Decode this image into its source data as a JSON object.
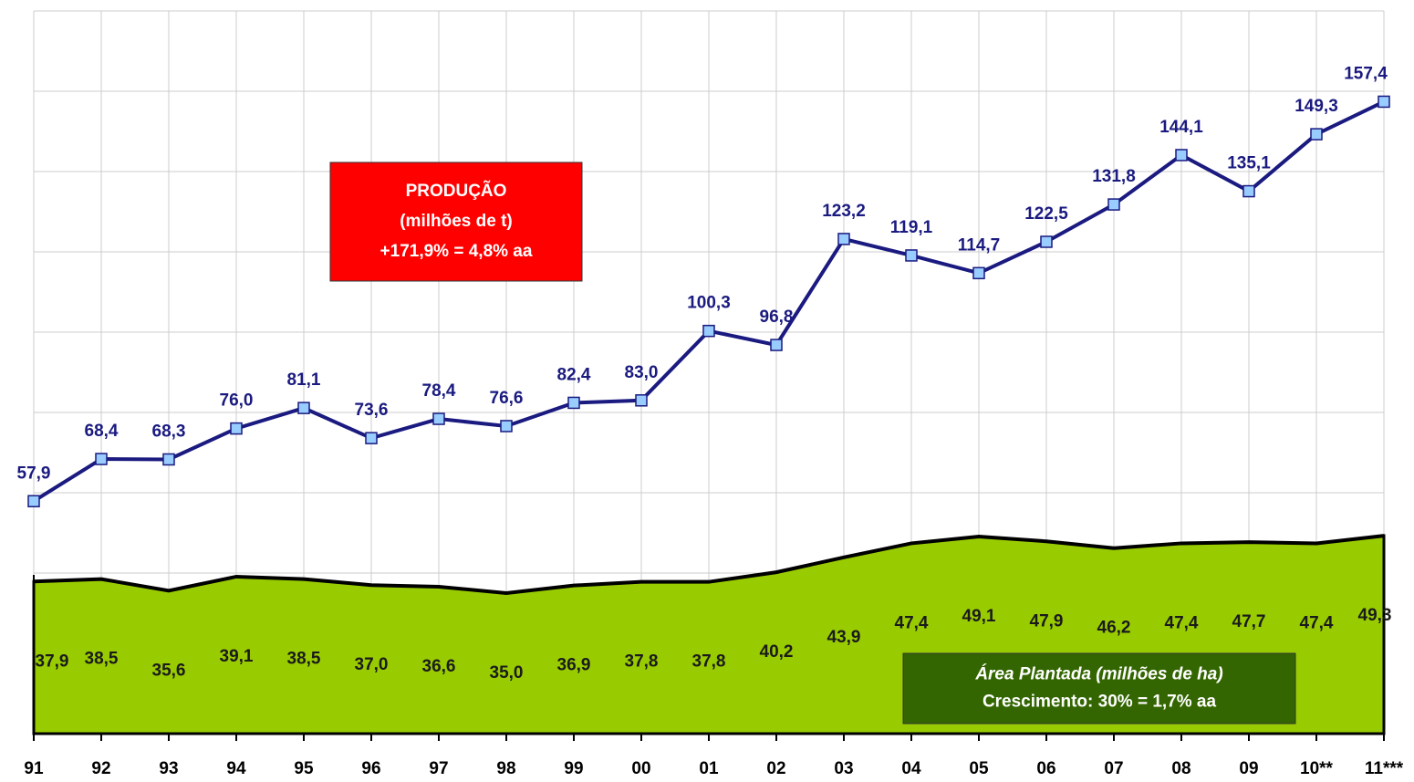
{
  "chart_data": {
    "type": "line",
    "categories": [
      "91",
      "92",
      "93",
      "94",
      "95",
      "96",
      "97",
      "98",
      "99",
      "00",
      "01",
      "02",
      "03",
      "04",
      "05",
      "06",
      "07",
      "08",
      "09",
      "10**",
      "11***"
    ],
    "ylim": [
      0,
      180
    ],
    "yticks": [
      0,
      20,
      40,
      60,
      80,
      100,
      120,
      140,
      160,
      180
    ],
    "grid": true,
    "series": [
      {
        "type": "area",
        "color": "#99cc00",
        "values": [
          37.9,
          38.5,
          35.6,
          39.1,
          38.5,
          37.0,
          36.6,
          35.0,
          36.9,
          37.8,
          37.8,
          40.2,
          43.9,
          47.4,
          49.1,
          47.9,
          46.2,
          47.4,
          47.7,
          47.4,
          49.3
        ],
        "value_labels": [
          "37,9",
          "38,5",
          "35,6",
          "39,1",
          "38,5",
          "37,0",
          "36,6",
          "35,0",
          "36,9",
          "37,8",
          "37,8",
          "40,2",
          "43,9",
          "47,4",
          "49,1",
          "47,9",
          "46,2",
          "47,4",
          "47,7",
          "47,4",
          "49,3"
        ]
      },
      {
        "type": "line",
        "color": "#1a1a80",
        "values": [
          57.9,
          68.4,
          68.3,
          76.0,
          81.1,
          73.6,
          78.4,
          76.6,
          82.4,
          83.0,
          100.3,
          96.8,
          123.2,
          119.1,
          114.7,
          122.5,
          131.8,
          144.1,
          135.1,
          149.3,
          157.4
        ],
        "value_labels": [
          "57,9",
          "68,4",
          "68,3",
          "76,0",
          "81,1",
          "73,6",
          "78,4",
          "76,6",
          "82,4",
          "83,0",
          "100,3",
          "96,8",
          "123,2",
          "119,1",
          "114,7",
          "122,5",
          "131,8",
          "144,1",
          "135,1",
          "149,3",
          "157,4"
        ]
      }
    ],
    "annotations": [
      {
        "text": [
          "PRODUÇÃO",
          "(milhões de t)",
          "+171,9% =  4,8% aa"
        ],
        "color": "#ff0000"
      },
      {
        "text": [
          "Área Plantada (milhões de ha)",
          "Crescimento: 30% = 1,7% aa"
        ],
        "color": "#336600"
      }
    ]
  }
}
